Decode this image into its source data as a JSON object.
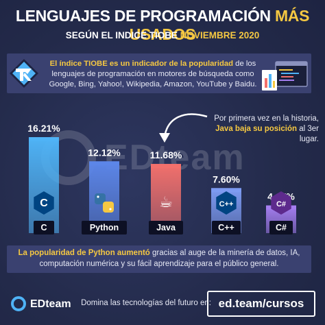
{
  "header": {
    "title_main": "LENGUAJES DE PROGRAMACIÓN ",
    "title_accent": "MÁS USADOS",
    "subtitle_main": "SEGÚN EL INDICE TIOBE ",
    "subtitle_accent": "NOVIEMBRE 2020"
  },
  "info": {
    "bold": "El índice TIOBE es un indicador de la popularidad",
    "rest": " de los lenguajes de programación en motores de búsqueda como Google, Bing, Yahoo!, Wikipedia, Amazon, YouTube y Baidu."
  },
  "annotation": {
    "line1": "Por primera vez en la historia,",
    "bold": "Java baja su posición",
    "rest": " al 3er lugar."
  },
  "watermark": "EDteam",
  "chart_data": {
    "type": "bar",
    "categories": [
      "C",
      "Python",
      "Java",
      "C++",
      "C#"
    ],
    "values": [
      16.21,
      12.12,
      11.68,
      7.6,
      4.67
    ],
    "value_labels": [
      "16.21%",
      "12.12%",
      "11.68%",
      "7.60%",
      "4.67%"
    ],
    "unit": "%",
    "ylim": [
      0,
      16.21
    ],
    "colors": [
      "#4fb3f6",
      "#5c86e8",
      "#f2706c",
      "#7d9bf2",
      "#a57ef0"
    ],
    "icons": [
      "c-logo-icon",
      "python-logo-icon",
      "java-logo-icon",
      "cpp-logo-icon",
      "csharp-logo-icon"
    ],
    "grid": false,
    "legend": "none"
  },
  "bottom_note": {
    "bold": "La popularidad de Python aumentó",
    "rest": " gracias al auge de la minería de datos, IA, computación numérica y su fácil aprendizaje para el público general."
  },
  "footer": {
    "brand": "EDteam",
    "cta": "Domina las tecnologías del futuro en:",
    "url": "ed.team/cursos"
  }
}
